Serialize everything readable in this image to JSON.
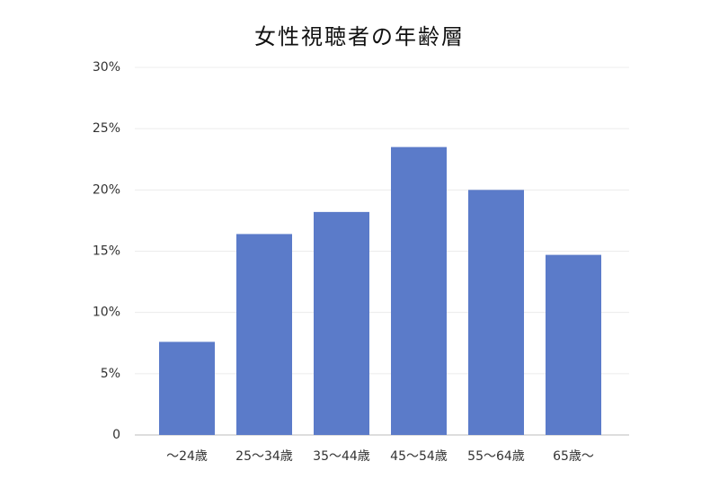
{
  "chart_data": {
    "type": "bar",
    "title": "女性視聴者の年齢層",
    "categories": [
      "～24歳",
      "25～34歳",
      "35～44歳",
      "45～54歳",
      "55～64歳",
      "65歳～"
    ],
    "values": [
      7.6,
      16.4,
      18.2,
      23.5,
      20,
      14.7
    ],
    "color": "#5b7bc9",
    "ylim": [
      0,
      30
    ],
    "yticks": [
      0,
      {
        "value": 5,
        "label": "5%"
      },
      {
        "value": 10,
        "label": "10%"
      },
      {
        "value": 15,
        "label": "15%"
      },
      {
        "value": 20,
        "label": "20%"
      },
      {
        "value": 25,
        "label": "25%"
      },
      {
        "value": 30,
        "label": "30%"
      }
    ],
    "grid": true
  }
}
